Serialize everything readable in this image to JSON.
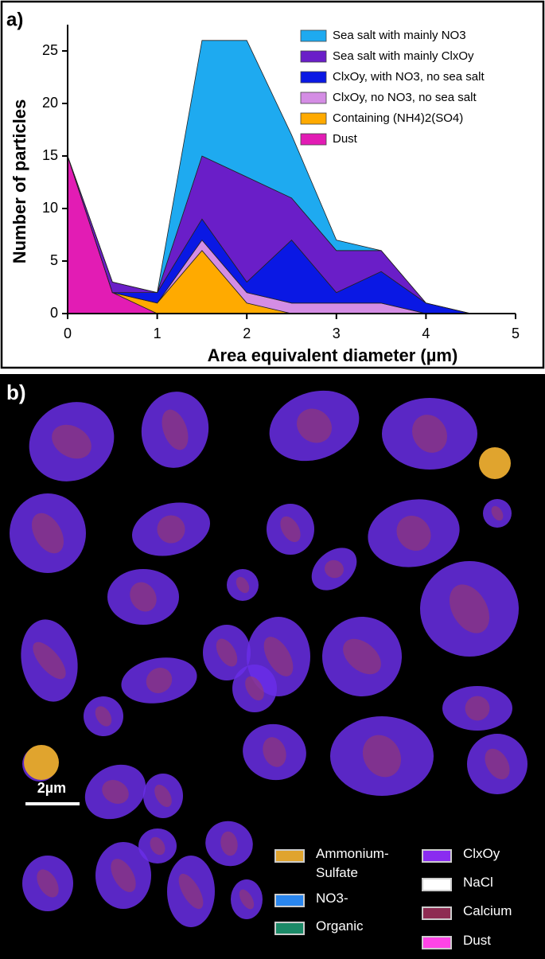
{
  "panel_a_label": "a)",
  "chart_data": {
    "type": "stacked_area",
    "xlabel": "Area equivalent diameter (µm)",
    "ylabel": "Number of particles",
    "x": [
      0,
      0.5,
      1,
      1.5,
      2,
      2.5,
      3,
      3.5,
      4,
      4.5,
      5
    ],
    "xlim": [
      0,
      5
    ],
    "xticks": [
      0,
      1,
      2,
      3,
      4,
      5
    ],
    "ylim": [
      0,
      27.5
    ],
    "yticks": [
      0,
      5,
      10,
      15,
      20,
      25
    ],
    "series": [
      {
        "name": "Dust",
        "color": "#e21cb4",
        "values": [
          15,
          2,
          0,
          0,
          0,
          0,
          0,
          0,
          0,
          0,
          0
        ]
      },
      {
        "name": "Containing (NH4)2(SO4)",
        "color": "#ffaa00",
        "values": [
          0,
          0,
          1,
          6,
          1,
          0,
          0,
          0,
          0,
          0,
          0
        ]
      },
      {
        "name": "ClxOy, no NO3, no sea salt",
        "color": "#d48de4",
        "values": [
          0,
          0,
          0,
          1,
          1,
          1,
          1,
          1,
          0,
          0,
          0
        ]
      },
      {
        "name": "ClxOy, with NO3, no sea salt",
        "color": "#0a18e4",
        "values": [
          0,
          0,
          1,
          2,
          1,
          6,
          1,
          3,
          1,
          0,
          0
        ]
      },
      {
        "name": "Sea salt with mainly ClxOy",
        "color": "#6a1ec8",
        "values": [
          0,
          1,
          0,
          6,
          10,
          4,
          4,
          2,
          0,
          0,
          0
        ]
      },
      {
        "name": "Sea salt with mainly NO3",
        "color": "#1eaaf0",
        "values": [
          0,
          0,
          0,
          11,
          13,
          6,
          1,
          0,
          0,
          0,
          0
        ]
      }
    ]
  },
  "panel_b": {
    "label": "b)",
    "scale_bar": "2µm",
    "legend": [
      {
        "label": "Ammonium-Sulfate",
        "color": "#e0a42e"
      },
      {
        "label": "NO3-",
        "color": "#2a86ee"
      },
      {
        "label": "Organic",
        "color": "#1c8a68"
      },
      {
        "label": "ClxOy",
        "color": "#8a2cf0"
      },
      {
        "label": "NaCl",
        "color": "#ffffff"
      },
      {
        "label": "Calcium",
        "color": "#8e2c52"
      },
      {
        "label": "Dust",
        "color": "#ff44e6"
      }
    ]
  }
}
